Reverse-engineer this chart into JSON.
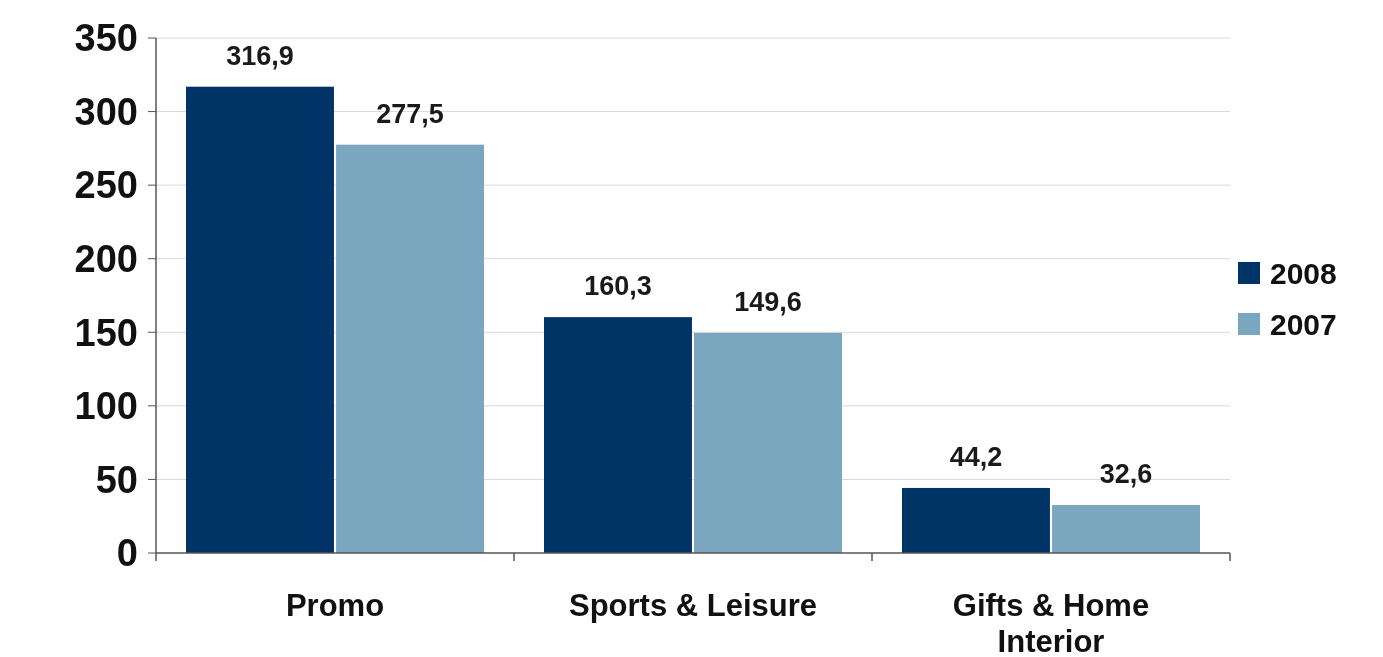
{
  "chart_data": {
    "type": "bar",
    "categories": [
      "Promo",
      "Sports & Leisure",
      "Gifts & Home Interior"
    ],
    "series": [
      {
        "name": "2008",
        "color": "#003366",
        "values": [
          316.9,
          160.3,
          44.2
        ],
        "value_labels": [
          "316,9",
          "160,3",
          "44,2"
        ]
      },
      {
        "name": "2007",
        "color": "#7aa6c0",
        "values": [
          277.5,
          149.6,
          32.6
        ],
        "value_labels": [
          "277,5",
          "149,6",
          "32,6"
        ]
      }
    ],
    "ylim": [
      0,
      350
    ],
    "yticks": [
      0,
      50,
      100,
      150,
      200,
      250,
      300,
      350
    ],
    "grid": "y",
    "legend": "right"
  }
}
